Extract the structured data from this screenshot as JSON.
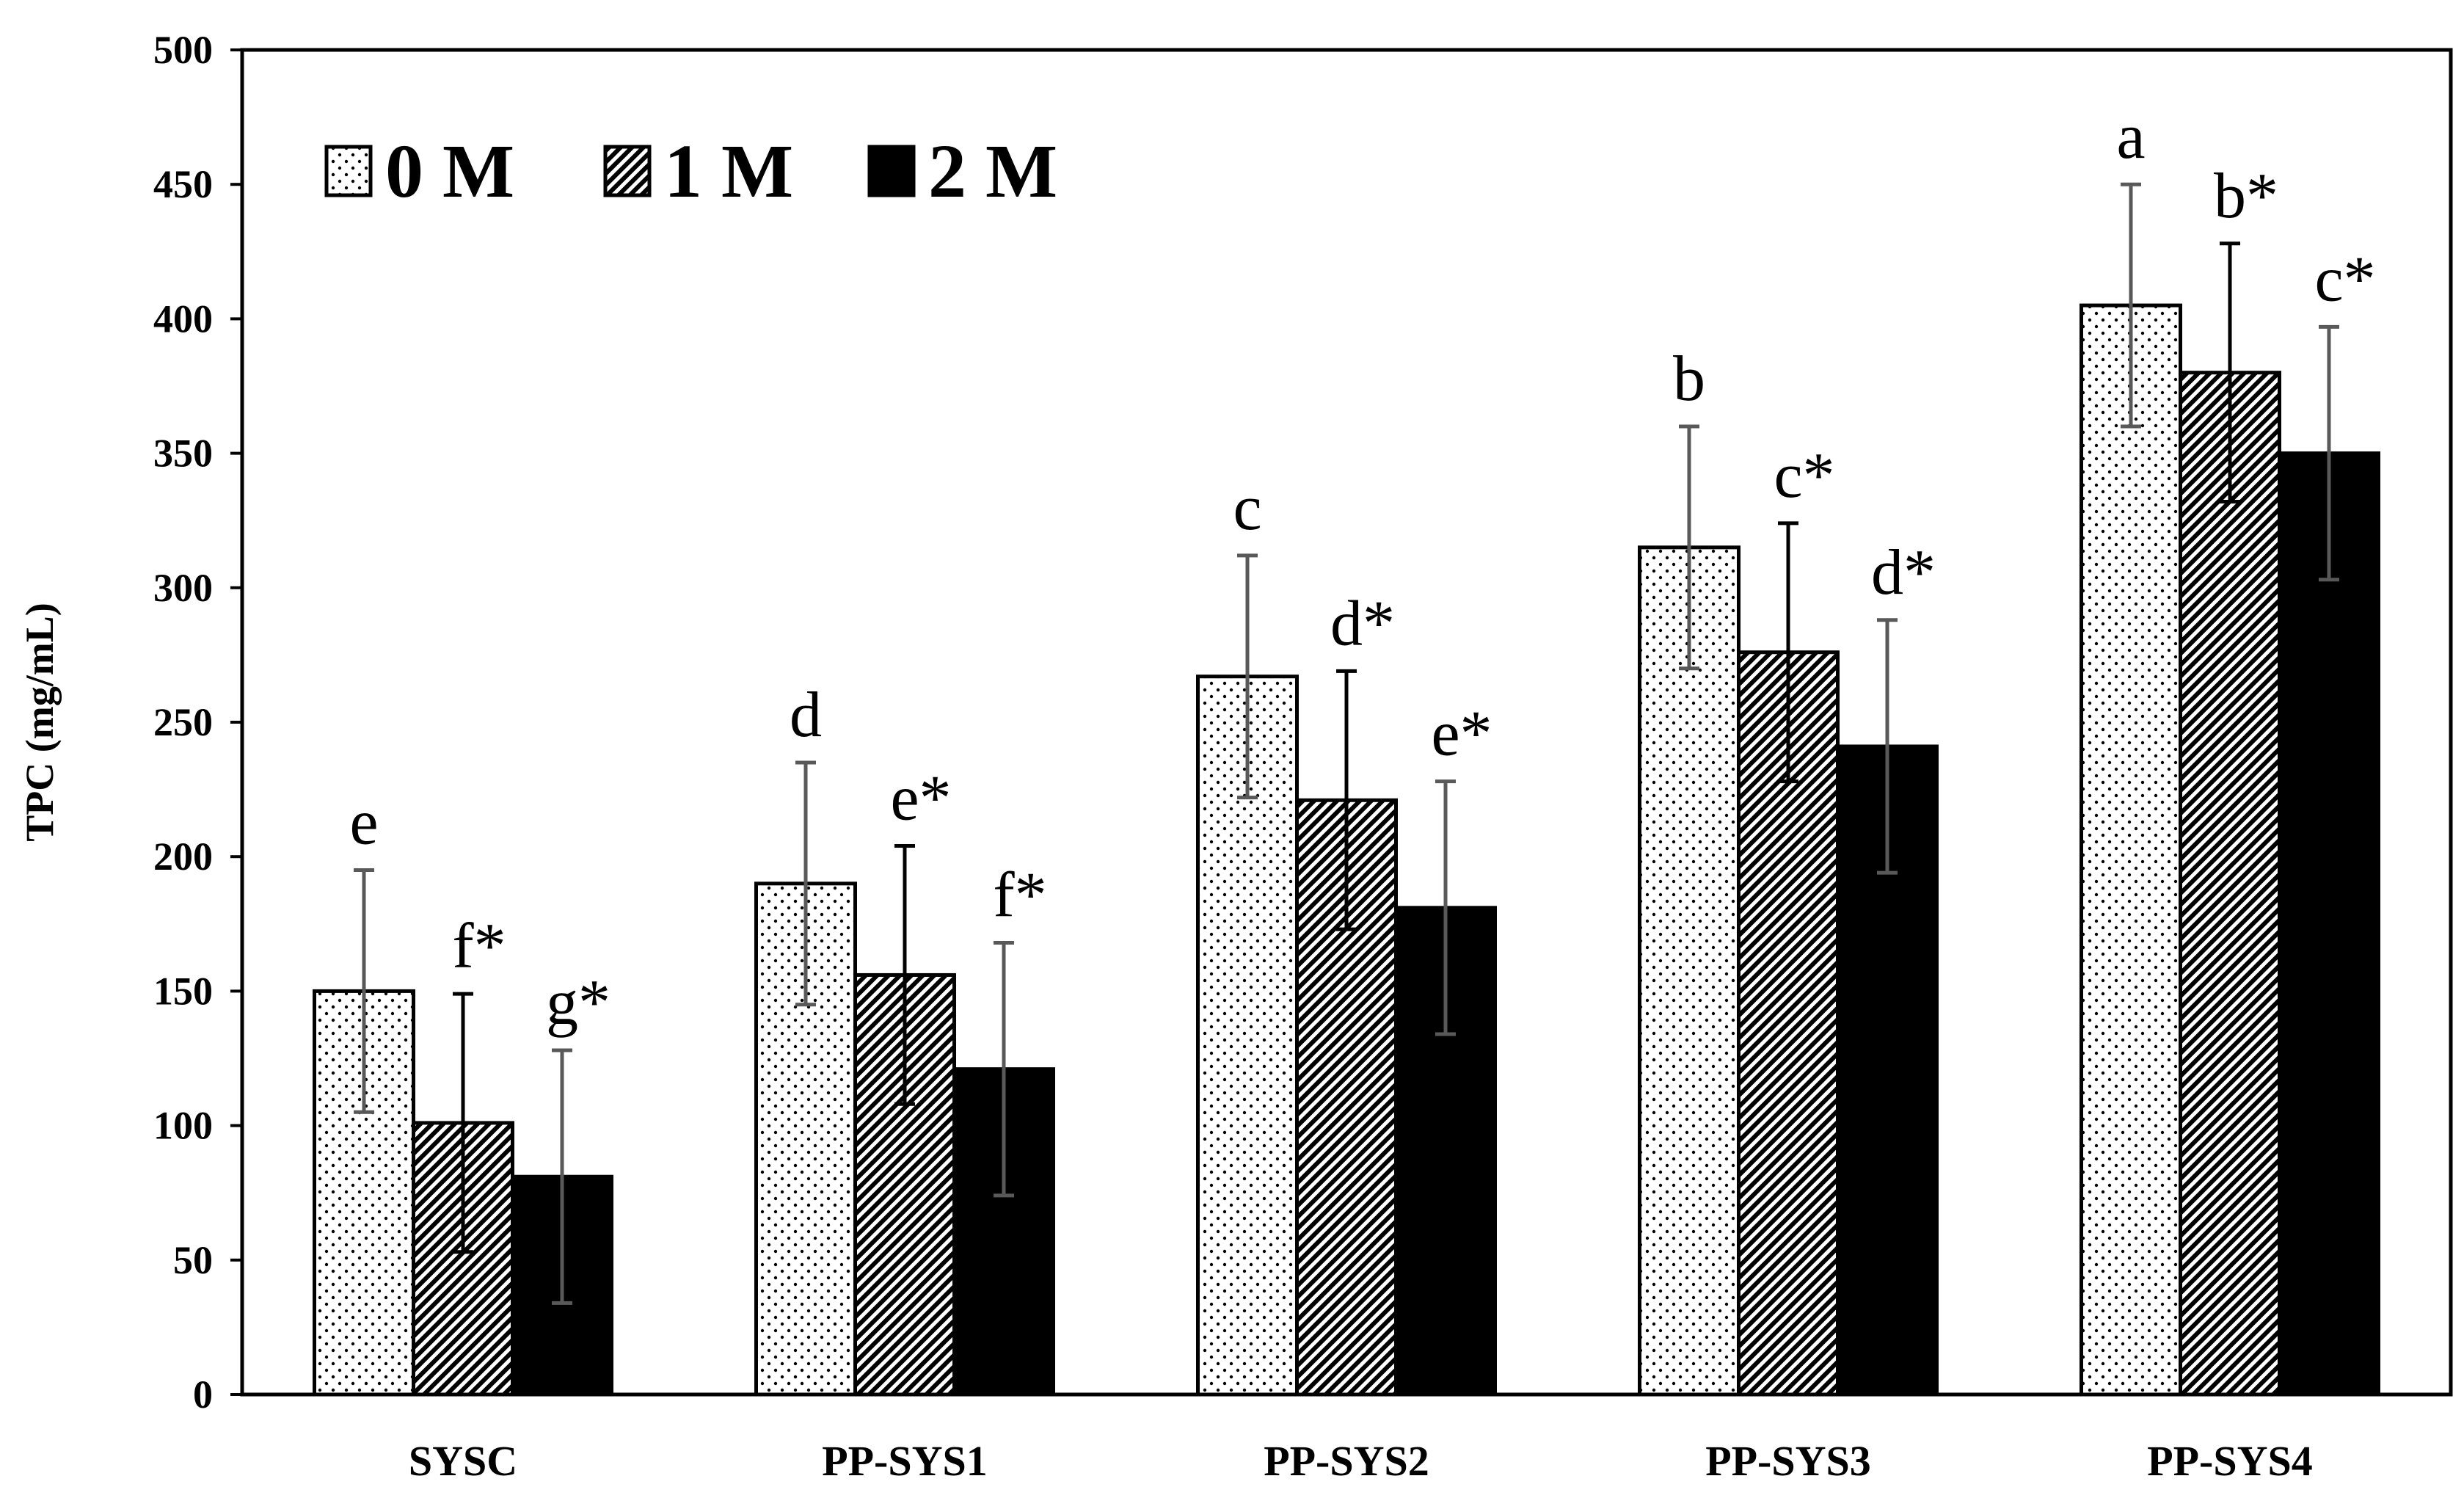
{
  "chart_data": {
    "type": "bar",
    "ylabel": "TPC (mg/mL)",
    "xlabel": "",
    "ylim": [
      0,
      500
    ],
    "yticks": [
      0,
      50,
      100,
      150,
      200,
      250,
      300,
      350,
      400,
      450,
      500
    ],
    "grid": false,
    "legend_position": "top-left",
    "categories": [
      "SYSC",
      "PP-SYS1",
      "PP-SYS2",
      "PP-SYS3",
      "PP-SYS4"
    ],
    "series": [
      {
        "name": "0 M",
        "pattern": "dots",
        "values": [
          150,
          190,
          267,
          315,
          405
        ],
        "errors": [
          45,
          45,
          45,
          45,
          45
        ],
        "labels": [
          "e",
          "d",
          "c",
          "b",
          "a"
        ]
      },
      {
        "name": "1 M",
        "pattern": "diagonal-hatch",
        "values": [
          101,
          156,
          221,
          276,
          380
        ],
        "errors": [
          48,
          48,
          48,
          48,
          48
        ],
        "labels": [
          "f*",
          "e*",
          "d*",
          "c*",
          "b*"
        ]
      },
      {
        "name": "2 M",
        "pattern": "solid",
        "values": [
          81,
          121,
          181,
          241,
          350
        ],
        "errors": [
          47,
          47,
          47,
          47,
          47
        ],
        "labels": [
          "g*",
          "f*",
          "e*",
          "d*",
          "c*"
        ]
      }
    ],
    "colors": {
      "bar_stroke": "#000000",
      "solid_fill": "#000000",
      "error_bar_0": "#595959",
      "error_bar_1": "#000000",
      "error_bar_2": "#595959"
    }
  }
}
